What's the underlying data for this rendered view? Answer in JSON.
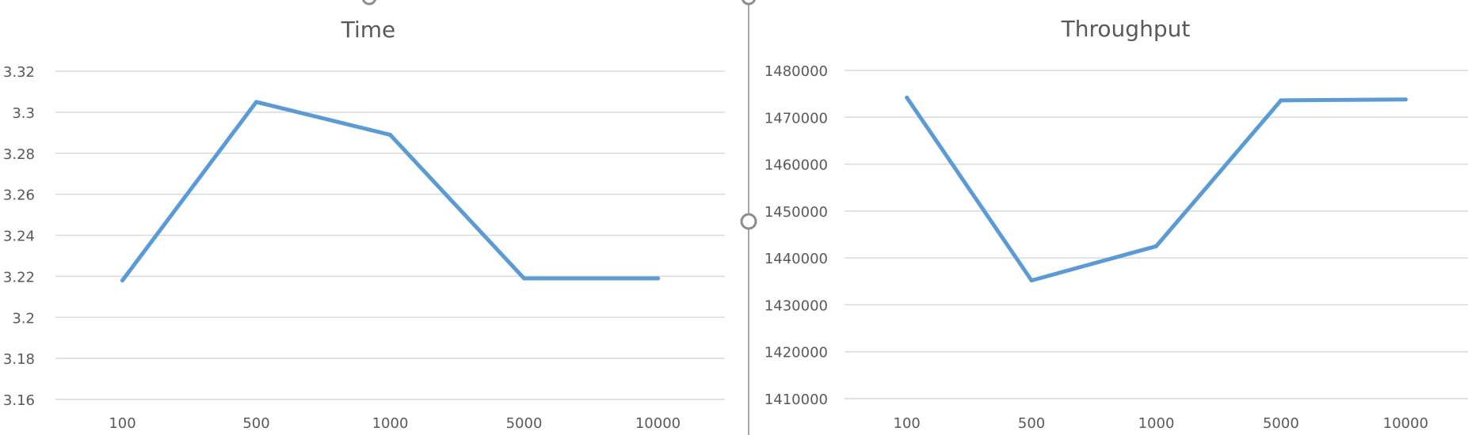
{
  "colors": {
    "series": "#5b9bd5",
    "gridline": "#d9d9d9",
    "text": "#595959"
  },
  "chart_data": [
    {
      "type": "line",
      "title": "Time",
      "xlabel": "",
      "ylabel": "",
      "categories": [
        "100",
        "500",
        "1000",
        "5000",
        "10000"
      ],
      "series": [
        {
          "values": [
            3.218,
            3.305,
            3.289,
            3.219,
            3.219
          ]
        }
      ],
      "ylim": [
        3.16,
        3.32
      ],
      "yticks": [
        "3.16",
        "3.18",
        "3.2",
        "3.22",
        "3.24",
        "3.26",
        "3.28",
        "3.3",
        "3.32"
      ],
      "grid": true,
      "legend": "none"
    },
    {
      "type": "line",
      "title": "Throughput",
      "xlabel": "",
      "ylabel": "",
      "categories": [
        "100",
        "500",
        "1000",
        "5000",
        "10000"
      ],
      "series": [
        {
          "values": [
            1474200,
            1435200,
            1442500,
            1473600,
            1473800
          ]
        }
      ],
      "ylim": [
        1410000,
        1480000
      ],
      "yticks": [
        "1410000",
        "1420000",
        "1430000",
        "1440000",
        "1450000",
        "1460000",
        "1470000",
        "1480000"
      ],
      "grid": true,
      "legend": "none"
    }
  ]
}
